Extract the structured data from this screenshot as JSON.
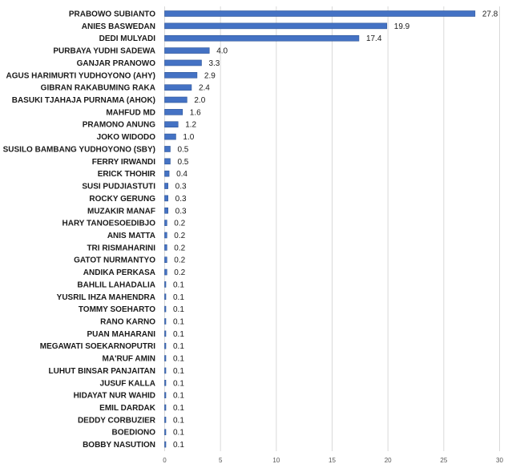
{
  "chart_data": {
    "type": "bar",
    "orientation": "horizontal",
    "categories": [
      "PRABOWO SUBIANTO",
      "ANIES BASWEDAN",
      "DEDI MULYADI",
      "PURBAYA YUDHI SADEWA",
      "GANJAR PRANOWO",
      "AGUS HARIMURTI YUDHOYONO (AHY)",
      "GIBRAN RAKABUMING RAKA",
      "BASUKI TJAHAJA PURNAMA (AHOK)",
      "MAHFUD MD",
      "PRAMONO ANUNG",
      "JOKO WIDODO",
      "SUSILO BAMBANG YUDHOYONO (SBY)",
      "FERRY IRWANDI",
      "ERICK THOHIR",
      "SUSI PUDJIASTUTI",
      "ROCKY GERUNG",
      "MUZAKIR MANAF",
      "HARY TANOESOEDIBJO",
      "ANIS MATTA",
      "TRI RISMAHARINI",
      "GATOT NURMANTYO",
      "ANDIKA PERKASA",
      "BAHLIL LAHADALIA",
      "YUSRIL IHZA MAHENDRA",
      "TOMMY SOEHARTO",
      "RANO KARNO",
      "PUAN MAHARANI",
      "MEGAWATI SOEKARNOPUTRI",
      "MA'RUF AMIN",
      "LUHUT BINSAR PANJAITAN",
      "JUSUF KALLA",
      "HIDAYAT NUR WAHID",
      "EMIL DARDAK",
      "DEDDY CORBUZIER",
      "BOEDIONO",
      "BOBBY NASUTION"
    ],
    "values": [
      27.8,
      19.9,
      17.4,
      4.0,
      3.3,
      2.9,
      2.4,
      2.0,
      1.6,
      1.2,
      1.0,
      0.5,
      0.5,
      0.4,
      0.3,
      0.3,
      0.3,
      0.2,
      0.2,
      0.2,
      0.2,
      0.2,
      0.1,
      0.1,
      0.1,
      0.1,
      0.1,
      0.1,
      0.1,
      0.1,
      0.1,
      0.1,
      0.1,
      0.1,
      0.1,
      0.1
    ],
    "value_labels": [
      "27.8",
      "19.9",
      "17.4",
      "4.0",
      "3.3",
      "2.9",
      "2.4",
      "2.0",
      "1.6",
      "1.2",
      "1.0",
      "0.5",
      "0.5",
      "0.4",
      "0.3",
      "0.3",
      "0.3",
      "0.2",
      "0.2",
      "0.2",
      "0.2",
      "0.2",
      "0.1",
      "0.1",
      "0.1",
      "0.1",
      "0.1",
      "0.1",
      "0.1",
      "0.1",
      "0.1",
      "0.1",
      "0.1",
      "0.1",
      "0.1",
      "0.1"
    ],
    "xlim": [
      0,
      30
    ],
    "xticks": [
      0,
      5,
      10,
      15,
      20,
      25,
      30
    ],
    "title": "",
    "xlabel": "",
    "ylabel": "",
    "grid": "vertical",
    "legend": "none",
    "bar_color": "#4472C4",
    "bar_edge_color": "#2E5597"
  }
}
